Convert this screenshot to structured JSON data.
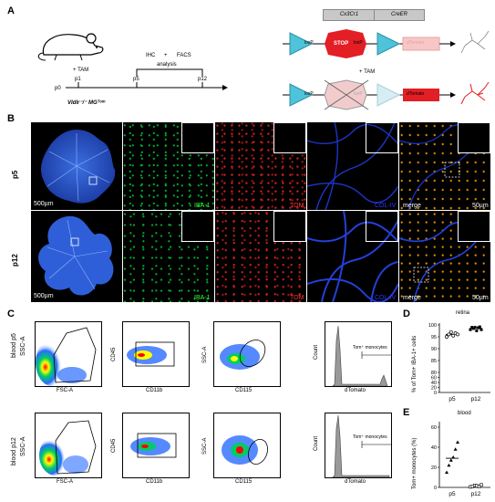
{
  "panels": {
    "A": {
      "label": "A",
      "treatment_tam": "+ TAM",
      "timeline": {
        "p0": "p0",
        "p1": "p1",
        "p5": "p5",
        "p12": "p12",
        "analysis": "analysis",
        "ihc": "IHC",
        "plus": "+",
        "facs": "FACS"
      },
      "genotype": "Vldlr⁻/⁻ MGᵀᵒᵐ",
      "construct": {
        "promoter": "Cx3Cr1",
        "creer": "CreER",
        "loxp_left": "loxP",
        "stop": "STOP",
        "loxp_right": "loxP",
        "dtomato": "dTomato",
        "tam": "+ TAM"
      }
    },
    "B": {
      "label": "B",
      "rows": [
        "p5",
        "p12"
      ],
      "channels": {
        "iba1": "IBA-1",
        "tom": "TOM",
        "col4": "COL-IV",
        "merge": "merge"
      },
      "scale_large": "500µm",
      "scale_small": "50µm"
    },
    "C": {
      "label": "C",
      "rows": [
        "blood p5",
        "blood p12"
      ],
      "axes": {
        "fsc": "FSC-A",
        "ssc": "SSC-A",
        "cd45": "CD45",
        "cd11b": "CD11b",
        "cd115": "CD115",
        "count": "Count",
        "dtomato": "dTomato"
      },
      "gate_label": "Tom⁺ monocytes"
    },
    "D": {
      "label": "D",
      "title": "retina",
      "ylabel": "% of Tom+ IBA-1+ cells"
    },
    "E": {
      "label": "E",
      "title": "blood",
      "ylabel": "Tom+ monocytes (%)"
    }
  },
  "chart_data": [
    {
      "type": "scatter",
      "title": "retina",
      "ylabel": "% of Tom+ IBA-1+ cells",
      "categories": [
        "p5",
        "p12"
      ],
      "ylim": [
        0,
        100
      ],
      "y_ticks": [
        0,
        20,
        40,
        60,
        80,
        85,
        90,
        95,
        100
      ],
      "series": [
        {
          "category": "p5",
          "values": [
            95,
            96,
            97,
            95.5,
            96.5,
            96
          ],
          "mean": 96
        },
        {
          "category": "p12",
          "values": [
            98,
            99,
            98.5,
            99,
            97.5,
            98.8,
            99.2,
            98
          ],
          "mean": 98.5
        }
      ]
    },
    {
      "type": "scatter",
      "title": "blood",
      "ylabel": "Tom+ monocytes (%)",
      "categories": [
        "p5",
        "p12"
      ],
      "ylim": [
        0,
        60
      ],
      "y_ticks": [
        0,
        20,
        40,
        60
      ],
      "series": [
        {
          "category": "p5",
          "values": [
            15,
            22,
            27,
            30,
            38,
            45
          ],
          "mean": 29
        },
        {
          "category": "p12",
          "values": [
            0.5,
            1,
            2,
            1.5,
            0.8,
            2.5
          ],
          "mean": 1.5
        }
      ]
    }
  ]
}
